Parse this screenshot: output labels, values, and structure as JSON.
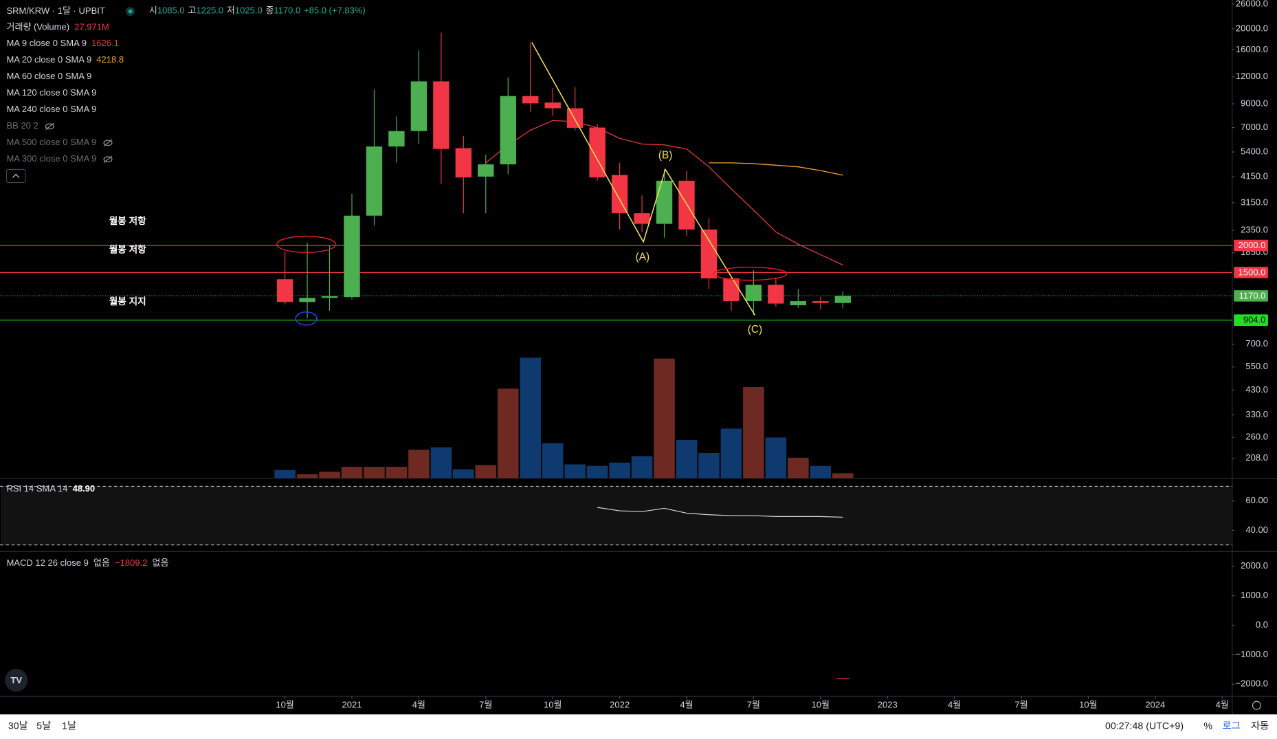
{
  "header": {
    "title": "SRM/KRW · 1달 · UPBIT",
    "ohlc": [
      {
        "label": "시",
        "value": "1085.0"
      },
      {
        "label": "고",
        "value": "1225.0"
      },
      {
        "label": "저",
        "value": "1025.0"
      },
      {
        "label": "종",
        "value": "1170.0"
      }
    ],
    "change": "+85.0 (+7.83%)",
    "other_indicators": [
      {
        "name": "MA 60 close 0 SMA 9",
        "visible": true
      },
      {
        "name": "MA 120 close 0 SMA 9",
        "visible": true
      },
      {
        "name": "MA 240 close 0 SMA 9",
        "visible": true
      },
      {
        "name": "BB 20 2",
        "visible": false
      },
      {
        "name": "MA 500 close 0 SMA 9",
        "visible": false
      },
      {
        "name": "MA 300 close 0 SMA 9",
        "visible": false
      }
    ]
  },
  "drawings": {
    "notes": [
      "월봉 저항",
      "월봉 저항",
      "월봉 지지"
    ],
    "wave_labels": [
      "(A)",
      "(B)",
      "(C)"
    ]
  },
  "chart_data": [
    {
      "type": "candlestick",
      "log_scale": true,
      "ylim": [
        170,
        27150
      ],
      "xlim": [
        -12.77,
        42.45
      ],
      "yticks": [
        {
          "value": 26000,
          "label": "26000.0"
        },
        {
          "value": 20000,
          "label": "20000.0"
        },
        {
          "value": 16000,
          "label": "16000.0"
        },
        {
          "value": 12000,
          "label": "12000.0"
        },
        {
          "value": 9000,
          "label": "9000.0"
        },
        {
          "value": 7000,
          "label": "7000.0"
        },
        {
          "value": 5400,
          "label": "5400.0"
        },
        {
          "value": 4150,
          "label": "4150.0"
        },
        {
          "value": 3150,
          "label": "3150.0"
        },
        {
          "value": 2350,
          "label": "2350.0"
        },
        {
          "value": 1850,
          "label": "1850.0"
        },
        {
          "value": 700,
          "label": "700.0"
        },
        {
          "value": 550,
          "label": "550.0"
        },
        {
          "value": 430,
          "label": "430.0"
        },
        {
          "value": 330,
          "label": "330.0"
        },
        {
          "value": 260,
          "label": "260.0"
        },
        {
          "value": 208,
          "label": "208.0"
        }
      ],
      "xticks": [
        {
          "value": 0,
          "label": "10월"
        },
        {
          "value": 3,
          "label": "2021"
        },
        {
          "value": 6,
          "label": "4월"
        },
        {
          "value": 9,
          "label": "7월"
        },
        {
          "value": 12,
          "label": "10월"
        },
        {
          "value": 15,
          "label": "2022"
        },
        {
          "value": 18,
          "label": "4월"
        },
        {
          "value": 21,
          "label": "7월"
        },
        {
          "value": 24,
          "label": "10월"
        },
        {
          "value": 27,
          "label": "2023"
        },
        {
          "value": 30,
          "label": "4월"
        },
        {
          "value": 33,
          "label": "7월"
        },
        {
          "value": 36,
          "label": "10월"
        },
        {
          "value": 39,
          "label": "2024"
        },
        {
          "value": 42,
          "label": "4월"
        }
      ],
      "open": [
        1396,
        1096,
        1145,
        1155,
        2744,
        5722,
        6745,
        11430,
        5624,
        4155,
        4732,
        9784,
        9130,
        8593,
        7000,
        4228,
        2816,
        2515,
        3979,
        2369,
        1409,
        1106,
        1316,
        1059,
        1106,
        1085
      ],
      "high": [
        1890,
        2061,
        2000,
        3464,
        10487,
        7878,
        15880,
        19210,
        6404,
        5249,
        11937,
        17310,
        10665,
        10760,
        7288,
        4811,
        3404,
        4490,
        4415,
        2673,
        1420,
        1536,
        1420,
        1259,
        1160,
        1225
      ],
      "low": [
        1068,
        922,
        997,
        1125,
        2472,
        4811,
        5874,
        3843,
        2816,
        2816,
        4264,
        8299,
        7948,
        6801,
        3979,
        2369,
        2307,
        2171,
        2210,
        1259,
        997,
        955,
        1043,
        1030,
        1010,
        1025
      ],
      "close": [
        1096,
        1145,
        1165,
        2744,
        5722,
        6745,
        11430,
        5575,
        4118,
        4732,
        9784,
        9050,
        8593,
        6981,
        4118,
        2816,
        2515,
        3979,
        2369,
        1409,
        1106,
        1316,
        1078,
        1106,
        1085,
        1170
      ],
      "up_color": "#4caf50",
      "down_color": "#f23645",
      "series": [
        {
          "name": "MA 9 close 0 SMA 9",
          "color": "#e53935",
          "values": [
            null,
            null,
            null,
            null,
            null,
            null,
            null,
            null,
            null,
            4811,
            5819,
            6801,
            7545,
            7450,
            6981,
            6240,
            5874,
            5819,
            5575,
            4610,
            3648,
            2912,
            2307,
            2027,
            1813,
            1626.1
          ]
        },
        {
          "name": "MA 20 close 0 SMA 9",
          "color": "#f0a030",
          "values": [
            null,
            null,
            null,
            null,
            null,
            null,
            null,
            null,
            null,
            null,
            null,
            null,
            null,
            null,
            null,
            null,
            null,
            null,
            null,
            4811,
            4811,
            4770,
            4690,
            4610,
            4430,
            4218.8
          ]
        }
      ],
      "levels": [
        {
          "value": 2000,
          "label": "2000.0",
          "color": "#f23645",
          "text_color": "#ffffff",
          "style": "solid"
        },
        {
          "value": 1500,
          "label": "1500.0",
          "color": "#f23645",
          "text_color": "#ffffff",
          "style": "solid"
        },
        {
          "value": 1170,
          "label": "1170.0",
          "color": "#4caf50",
          "text_color": "#ffffff",
          "style": "dotted"
        },
        {
          "value": 904,
          "label": "904.0",
          "color": "#22dd22",
          "text_color": "#000000",
          "style": "solid"
        }
      ]
    },
    {
      "type": "bar",
      "name": "거래량 (Volume)",
      "ylim": [
        0,
        1400
      ],
      "values": [
        47,
        23,
        37,
        65,
        65,
        65,
        163,
        177,
        51,
        75,
        513,
        690,
        200,
        79,
        70,
        89,
        126,
        685,
        219,
        144,
        284,
        522,
        233,
        117,
        70,
        27.971
      ],
      "value_labels": [
        null,
        null,
        null,
        null,
        null,
        null,
        null,
        null,
        null,
        null,
        null,
        null,
        null,
        null,
        null,
        null,
        null,
        null,
        null,
        null,
        null,
        null,
        null,
        null,
        null,
        "27.971M"
      ],
      "up_color": "#6e2a22",
      "down_color": "#0f3a70",
      "label_color": "#f23645"
    },
    {
      "type": "line",
      "ylim": [
        26.1,
        75
      ],
      "bands": [
        70,
        30
      ],
      "yticks": [
        {
          "value": 60,
          "label": "60.00"
        },
        {
          "value": 40,
          "label": "40.00"
        }
      ],
      "series": [
        {
          "name": "RSI 14 SMA 14",
          "color": "#d8d8d8",
          "value_label": "48.90",
          "values": [
            null,
            null,
            null,
            null,
            null,
            null,
            null,
            null,
            null,
            null,
            null,
            null,
            null,
            null,
            55.6,
            53.3,
            52.8,
            55.0,
            51.7,
            50.6,
            50.0,
            50.0,
            49.4,
            49.4,
            49.4,
            48.9
          ]
        }
      ]
    },
    {
      "type": "line",
      "ylim": [
        -2361,
        2472
      ],
      "yticks": [
        {
          "value": 2000,
          "label": "2000.0"
        },
        {
          "value": 1000,
          "label": "1000.0"
        },
        {
          "value": 0,
          "label": "0.0"
        },
        {
          "value": -1000,
          "label": "−1000.0"
        },
        {
          "value": -2000,
          "label": "−2000.0"
        }
      ],
      "histogram_label": "없음",
      "signal_label": "없음",
      "series": [
        {
          "name": "MACD 12 26 close 9",
          "color": "#f23645",
          "value_label": "−1809.2",
          "values": [
            null,
            null,
            null,
            null,
            null,
            null,
            null,
            null,
            null,
            null,
            null,
            null,
            null,
            null,
            null,
            null,
            null,
            null,
            null,
            null,
            null,
            null,
            null,
            null,
            null,
            -1809.2
          ]
        }
      ]
    }
  ],
  "footer": {
    "periods": [
      "30날",
      "5날",
      "1날"
    ],
    "clock": "00:27:48 (UTC+9)",
    "percent": "%",
    "log": "로그",
    "auto": "자동"
  }
}
